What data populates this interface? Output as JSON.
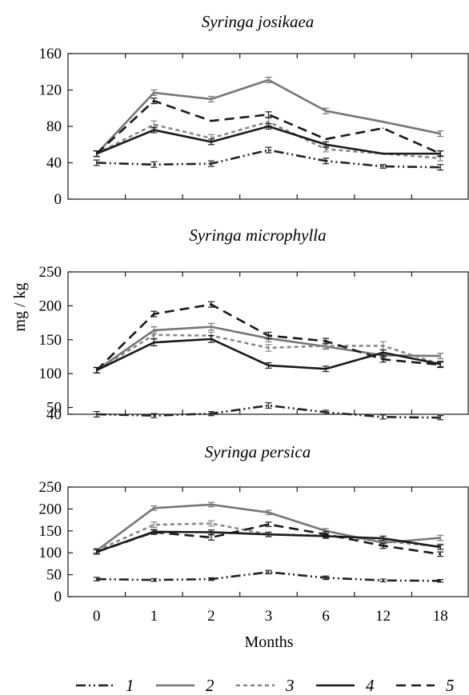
{
  "figure": {
    "ylabel": "mg / kg",
    "xlabel": "Months"
  },
  "legend": [
    {
      "key": "1",
      "label": "1"
    },
    {
      "key": "2",
      "label": "2"
    },
    {
      "key": "3",
      "label": "3"
    },
    {
      "key": "4",
      "label": "4"
    },
    {
      "key": "5",
      "label": "5"
    }
  ],
  "styles": {
    "1": {
      "color": "#222222",
      "dash": "12 4 2 4 2 4"
    },
    "2": {
      "color": "#777777",
      "dash": ""
    },
    "3": {
      "color": "#888888",
      "dash": "5 4"
    },
    "4": {
      "color": "#1a1a1a",
      "dash": ""
    },
    "5": {
      "color": "#1a1a1a",
      "dash": "12 7"
    }
  },
  "chart_data": [
    {
      "type": "line",
      "title": "Syringa josikaea",
      "categories": [
        "0",
        "1",
        "2",
        "3",
        "6",
        "12",
        "18"
      ],
      "ylim": [
        0,
        160
      ],
      "yticks": [
        0,
        40,
        80,
        120,
        160
      ],
      "xlabel": "",
      "ylabel": "",
      "series": [
        {
          "key": "1",
          "values": [
            40,
            38,
            39,
            54,
            42,
            36,
            35
          ],
          "errors": [
            3,
            3,
            3,
            3,
            3,
            2,
            3
          ]
        },
        {
          "key": "2",
          "values": [
            50,
            117,
            110,
            131,
            97,
            85,
            72
          ],
          "errors": [
            3,
            3,
            3,
            3,
            3,
            0,
            3
          ]
        },
        {
          "key": "3",
          "values": [
            50,
            82,
            67,
            85,
            55,
            50,
            45
          ],
          "errors": [
            3,
            4,
            4,
            4,
            3,
            0,
            3
          ]
        },
        {
          "key": "4",
          "values": [
            50,
            76,
            63,
            80,
            60,
            50,
            50
          ],
          "errors": [
            3,
            3,
            3,
            3,
            3,
            0,
            3
          ]
        },
        {
          "key": "5",
          "values": [
            50,
            108,
            86,
            93,
            66,
            78,
            50
          ],
          "errors": [
            3,
            3,
            0,
            3,
            0,
            0,
            3
          ]
        }
      ]
    },
    {
      "type": "line",
      "title": "Syringa microphylla",
      "categories": [
        "0",
        "1",
        "2",
        "3",
        "6",
        "12",
        "18"
      ],
      "ylim": [
        40,
        250
      ],
      "yticks": [
        40,
        50,
        100,
        150,
        200,
        250
      ],
      "xlabel": "",
      "ylabel": "mg / kg",
      "series": [
        {
          "key": "1",
          "values": [
            40,
            38,
            41,
            53,
            43,
            36,
            35
          ],
          "errors": [
            4,
            3,
            3,
            4,
            3,
            3,
            3
          ]
        },
        {
          "key": "2",
          "values": [
            105,
            164,
            169,
            152,
            140,
            127,
            126
          ],
          "errors": [
            4,
            5,
            5,
            5,
            4,
            4,
            4
          ]
        },
        {
          "key": "3",
          "values": [
            105,
            157,
            156,
            138,
            141,
            141,
            114
          ],
          "errors": [
            4,
            5,
            5,
            5,
            4,
            6,
            4
          ]
        },
        {
          "key": "4",
          "values": [
            105,
            146,
            151,
            112,
            107,
            131,
            114
          ],
          "errors": [
            4,
            5,
            5,
            4,
            4,
            4,
            4
          ]
        },
        {
          "key": "5",
          "values": [
            105,
            188,
            202,
            156,
            148,
            121,
            113
          ],
          "errors": [
            4,
            4,
            4,
            5,
            4,
            4,
            4
          ]
        }
      ]
    },
    {
      "type": "line",
      "title": "Syringa persica",
      "categories": [
        "0",
        "1",
        "2",
        "3",
        "6",
        "12",
        "18"
      ],
      "ylim": [
        0,
        250
      ],
      "yticks": [
        0,
        50,
        100,
        150,
        200,
        250
      ],
      "xlabel": "Months",
      "ylabel": "",
      "series": [
        {
          "key": "1",
          "values": [
            40,
            38,
            40,
            56,
            43,
            37,
            36
          ],
          "errors": [
            4,
            3,
            3,
            4,
            4,
            3,
            3
          ]
        },
        {
          "key": "2",
          "values": [
            105,
            202,
            210,
            192,
            150,
            123,
            134
          ],
          "errors": [
            5,
            5,
            5,
            5,
            5,
            5,
            6
          ]
        },
        {
          "key": "3",
          "values": [
            105,
            164,
            167,
            142,
            139,
            127,
            114
          ],
          "errors": [
            5,
            6,
            6,
            5,
            5,
            6,
            6
          ]
        },
        {
          "key": "4",
          "values": [
            102,
            148,
            147,
            142,
            138,
            133,
            113
          ],
          "errors": [
            5,
            5,
            5,
            5,
            5,
            5,
            5
          ]
        },
        {
          "key": "5",
          "values": [
            102,
            147,
            135,
            165,
            142,
            116,
            97
          ],
          "errors": [
            5,
            5,
            6,
            5,
            6,
            6,
            5
          ]
        }
      ]
    }
  ]
}
